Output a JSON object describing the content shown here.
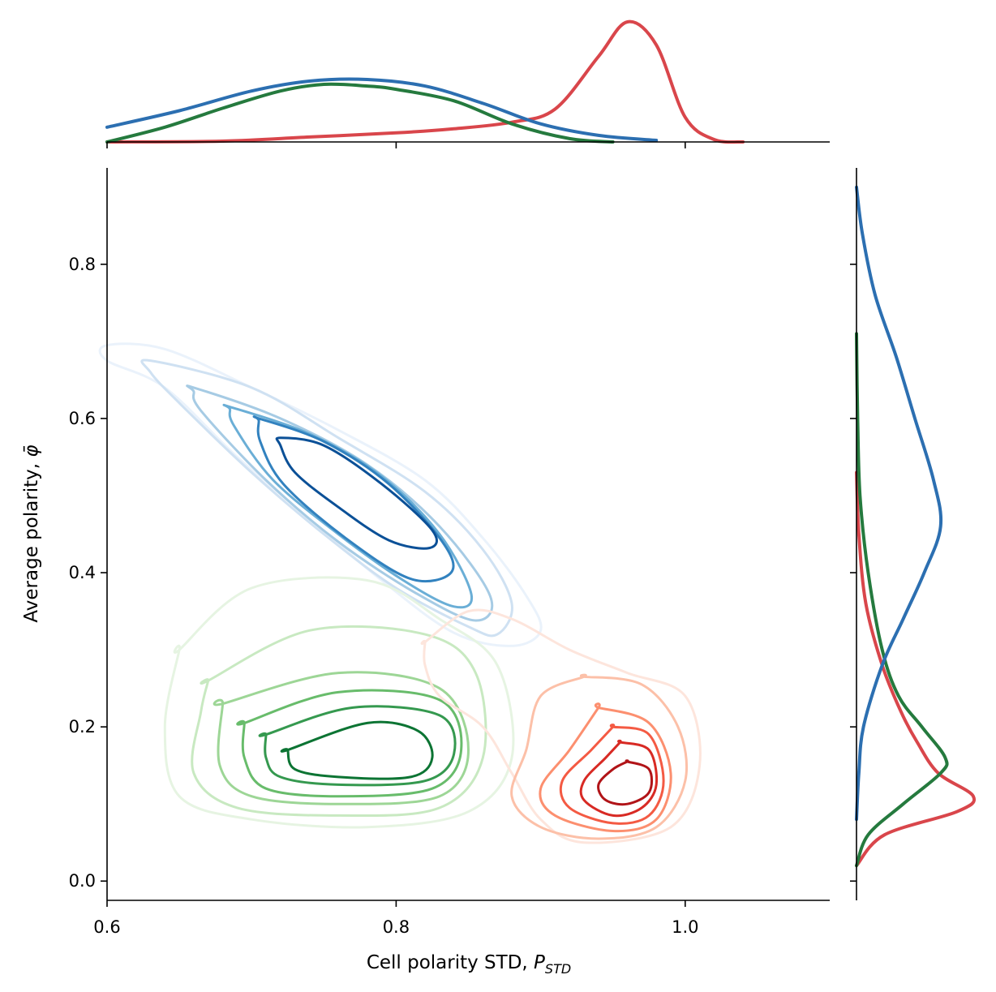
{
  "chart_data": {
    "type": "joint-kde",
    "xlabel": {
      "prefix": "Cell polarity STD, ",
      "symbol": "P",
      "subscript": "STD"
    },
    "ylabel": {
      "prefix": "Average polarity, ",
      "symbol": "φ̄"
    },
    "xlim": [
      0.6,
      1.1
    ],
    "ylim": [
      -0.025,
      0.925
    ],
    "xticks": [
      0.6,
      0.8,
      1.0
    ],
    "xtick_labels": [
      "0.6",
      "0.8",
      "1.0"
    ],
    "yticks": [
      0.0,
      0.2,
      0.4,
      0.6,
      0.8
    ],
    "ytick_labels": [
      "0.0",
      "0.2",
      "0.4",
      "0.6",
      "0.8"
    ],
    "grid": false,
    "series": [
      {
        "color": "#2c6fb1",
        "contour_palette": [
          "#eaf2fb",
          "#cfe1f2",
          "#a6cbe4",
          "#6aaed6",
          "#3282bf",
          "#0b5097"
        ],
        "kde_x": [
          [
            0.6,
            0.018
          ],
          [
            0.65,
            0.038
          ],
          [
            0.7,
            0.062
          ],
          [
            0.74,
            0.074
          ],
          [
            0.78,
            0.076
          ],
          [
            0.82,
            0.068
          ],
          [
            0.86,
            0.047
          ],
          [
            0.9,
            0.022
          ],
          [
            0.94,
            0.008
          ],
          [
            0.98,
            0.002
          ]
        ],
        "kde_y": [
          [
            0.08,
            0.0
          ],
          [
            0.14,
            0.02
          ],
          [
            0.2,
            0.06
          ],
          [
            0.28,
            0.22
          ],
          [
            0.34,
            0.4
          ],
          [
            0.4,
            0.58
          ],
          [
            0.46,
            0.72
          ],
          [
            0.52,
            0.66
          ],
          [
            0.6,
            0.5
          ],
          [
            0.68,
            0.34
          ],
          [
            0.76,
            0.16
          ],
          [
            0.84,
            0.05
          ],
          [
            0.9,
            0.0
          ]
        ],
        "contours": [
          [
            [
              0.6,
              0.695
            ],
            [
              0.64,
              0.69
            ],
            [
              0.7,
              0.64
            ],
            [
              0.76,
              0.585
            ],
            [
              0.82,
              0.52
            ],
            [
              0.86,
              0.445
            ],
            [
              0.89,
              0.37
            ],
            [
              0.9,
              0.325
            ],
            [
              0.88,
              0.305
            ],
            [
              0.84,
              0.322
            ],
            [
              0.79,
              0.39
            ],
            [
              0.74,
              0.47
            ],
            [
              0.69,
              0.55
            ],
            [
              0.64,
              0.64
            ],
            [
              0.6,
              0.675
            ]
          ],
          [
            [
              0.63,
              0.675
            ],
            [
              0.7,
              0.64
            ],
            [
              0.76,
              0.575
            ],
            [
              0.82,
              0.505
            ],
            [
              0.86,
              0.43
            ],
            [
              0.88,
              0.36
            ],
            [
              0.87,
              0.32
            ],
            [
              0.85,
              0.33
            ],
            [
              0.8,
              0.38
            ],
            [
              0.75,
              0.45
            ],
            [
              0.7,
              0.53
            ],
            [
              0.65,
              0.62
            ],
            [
              0.63,
              0.66
            ]
          ],
          [
            [
              0.66,
              0.64
            ],
            [
              0.72,
              0.6
            ],
            [
              0.78,
              0.54
            ],
            [
              0.83,
              0.46
            ],
            [
              0.865,
              0.37
            ],
            [
              0.855,
              0.338
            ],
            [
              0.815,
              0.372
            ],
            [
              0.76,
              0.44
            ],
            [
              0.71,
              0.52
            ],
            [
              0.665,
              0.61
            ],
            [
              0.66,
              0.635
            ]
          ],
          [
            [
              0.685,
              0.615
            ],
            [
              0.74,
              0.58
            ],
            [
              0.79,
              0.525
            ],
            [
              0.83,
              0.45
            ],
            [
              0.852,
              0.372
            ],
            [
              0.84,
              0.356
            ],
            [
              0.805,
              0.39
            ],
            [
              0.76,
              0.45
            ],
            [
              0.715,
              0.52
            ],
            [
              0.688,
              0.59
            ],
            [
              0.685,
              0.612
            ]
          ],
          [
            [
              0.705,
              0.6
            ],
            [
              0.75,
              0.57
            ],
            [
              0.795,
              0.515
            ],
            [
              0.832,
              0.44
            ],
            [
              0.838,
              0.4
            ],
            [
              0.81,
              0.392
            ],
            [
              0.765,
              0.445
            ],
            [
              0.722,
              0.515
            ],
            [
              0.706,
              0.57
            ],
            [
              0.705,
              0.597
            ]
          ],
          [
            [
              0.72,
              0.575
            ],
            [
              0.75,
              0.565
            ],
            [
              0.79,
              0.515
            ],
            [
              0.825,
              0.455
            ],
            [
              0.823,
              0.432
            ],
            [
              0.795,
              0.442
            ],
            [
              0.76,
              0.485
            ],
            [
              0.73,
              0.53
            ],
            [
              0.72,
              0.565
            ]
          ]
        ]
      },
      {
        "color": "#257a3e",
        "contour_palette": [
          "#e6f4e2",
          "#c8e9c1",
          "#9dd696",
          "#68bc6b",
          "#35994f",
          "#0c7433"
        ],
        "kde_x": [
          [
            0.6,
            0.0
          ],
          [
            0.64,
            0.018
          ],
          [
            0.68,
            0.041
          ],
          [
            0.72,
            0.062
          ],
          [
            0.75,
            0.07
          ],
          [
            0.78,
            0.068
          ],
          [
            0.8,
            0.064
          ],
          [
            0.84,
            0.05
          ],
          [
            0.88,
            0.022
          ],
          [
            0.92,
            0.004
          ],
          [
            0.95,
            0.0
          ]
        ],
        "kde_y": [
          [
            0.02,
            0.0
          ],
          [
            0.06,
            0.1
          ],
          [
            0.1,
            0.4
          ],
          [
            0.14,
            0.72
          ],
          [
            0.16,
            0.76
          ],
          [
            0.2,
            0.56
          ],
          [
            0.24,
            0.36
          ],
          [
            0.3,
            0.22
          ],
          [
            0.4,
            0.1
          ],
          [
            0.5,
            0.03
          ],
          [
            0.6,
            0.01
          ],
          [
            0.71,
            0.0
          ]
        ],
        "contours": [
          [
            [
              0.65,
              0.3
            ],
            [
              0.7,
              0.38
            ],
            [
              0.78,
              0.39
            ],
            [
              0.83,
              0.34
            ],
            [
              0.87,
              0.28
            ],
            [
              0.88,
              0.16
            ],
            [
              0.85,
              0.09
            ],
            [
              0.78,
              0.07
            ],
            [
              0.7,
              0.08
            ],
            [
              0.65,
              0.11
            ],
            [
              0.64,
              0.2
            ],
            [
              0.65,
              0.3
            ]
          ],
          [
            [
              0.67,
              0.26
            ],
            [
              0.74,
              0.325
            ],
            [
              0.82,
              0.32
            ],
            [
              0.855,
              0.27
            ],
            [
              0.86,
              0.16
            ],
            [
              0.83,
              0.095
            ],
            [
              0.76,
              0.085
            ],
            [
              0.69,
              0.095
            ],
            [
              0.66,
              0.14
            ],
            [
              0.665,
              0.22
            ],
            [
              0.67,
              0.26
            ]
          ],
          [
            [
              0.68,
              0.23
            ],
            [
              0.76,
              0.27
            ],
            [
              0.83,
              0.25
            ],
            [
              0.85,
              0.17
            ],
            [
              0.83,
              0.11
            ],
            [
              0.76,
              0.1
            ],
            [
              0.7,
              0.11
            ],
            [
              0.678,
              0.15
            ],
            [
              0.68,
              0.23
            ]
          ],
          [
            [
              0.695,
              0.205
            ],
            [
              0.76,
              0.245
            ],
            [
              0.83,
              0.235
            ],
            [
              0.845,
              0.17
            ],
            [
              0.825,
              0.12
            ],
            [
              0.76,
              0.11
            ],
            [
              0.71,
              0.12
            ],
            [
              0.695,
              0.16
            ],
            [
              0.695,
              0.205
            ]
          ],
          [
            [
              0.71,
              0.19
            ],
            [
              0.77,
              0.225
            ],
            [
              0.83,
              0.215
            ],
            [
              0.84,
              0.165
            ],
            [
              0.82,
              0.13
            ],
            [
              0.76,
              0.125
            ],
            [
              0.72,
              0.135
            ],
            [
              0.71,
              0.16
            ],
            [
              0.71,
              0.19
            ]
          ],
          [
            [
              0.725,
              0.17
            ],
            [
              0.78,
              0.205
            ],
            [
              0.815,
              0.195
            ],
            [
              0.825,
              0.16
            ],
            [
              0.81,
              0.135
            ],
            [
              0.76,
              0.135
            ],
            [
              0.73,
              0.145
            ],
            [
              0.725,
              0.17
            ]
          ]
        ]
      },
      {
        "color": "#d9464b",
        "contour_palette": [
          "#fde5dc",
          "#fcc0a8",
          "#fc8f6f",
          "#f45a43",
          "#d82a24",
          "#b11418"
        ],
        "kde_x": [
          [
            0.6,
            0.0
          ],
          [
            0.68,
            0.001
          ],
          [
            0.74,
            0.006
          ],
          [
            0.8,
            0.011
          ],
          [
            0.84,
            0.016
          ],
          [
            0.88,
            0.024
          ],
          [
            0.91,
            0.04
          ],
          [
            0.94,
            0.104
          ],
          [
            0.96,
            0.146
          ],
          [
            0.98,
            0.118
          ],
          [
            1.0,
            0.03
          ],
          [
            1.02,
            0.003
          ],
          [
            1.04,
            0.0
          ]
        ],
        "kde_y": [
          [
            0.02,
            0.0
          ],
          [
            0.06,
            0.24
          ],
          [
            0.09,
            0.86
          ],
          [
            0.11,
            1.0
          ],
          [
            0.14,
            0.7
          ],
          [
            0.18,
            0.52
          ],
          [
            0.22,
            0.38
          ],
          [
            0.28,
            0.22
          ],
          [
            0.36,
            0.08
          ],
          [
            0.45,
            0.02
          ],
          [
            0.53,
            0.0
          ]
        ],
        "contours": [
          [
            [
              0.82,
              0.31
            ],
            [
              0.85,
              0.35
            ],
            [
              0.88,
              0.34
            ],
            [
              0.92,
              0.3
            ],
            [
              0.96,
              0.27
            ],
            [
              1.0,
              0.24
            ],
            [
              1.01,
              0.15
            ],
            [
              0.99,
              0.07
            ],
            [
              0.93,
              0.05
            ],
            [
              0.9,
              0.08
            ],
            [
              0.88,
              0.14
            ],
            [
              0.86,
              0.2
            ],
            [
              0.83,
              0.24
            ],
            [
              0.82,
              0.28
            ],
            [
              0.82,
              0.31
            ]
          ],
          [
            [
              0.93,
              0.265
            ],
            [
              0.97,
              0.255
            ],
            [
              0.995,
              0.2
            ],
            [
              1.0,
              0.13
            ],
            [
              0.98,
              0.07
            ],
            [
              0.94,
              0.055
            ],
            [
              0.9,
              0.07
            ],
            [
              0.88,
              0.11
            ],
            [
              0.89,
              0.17
            ],
            [
              0.9,
              0.24
            ],
            [
              0.93,
              0.265
            ]
          ],
          [
            [
              0.94,
              0.225
            ],
            [
              0.975,
              0.205
            ],
            [
              0.99,
              0.14
            ],
            [
              0.98,
              0.08
            ],
            [
              0.95,
              0.065
            ],
            [
              0.91,
              0.085
            ],
            [
              0.9,
              0.12
            ],
            [
              0.92,
              0.17
            ],
            [
              0.94,
              0.225
            ]
          ],
          [
            [
              0.95,
              0.2
            ],
            [
              0.975,
              0.19
            ],
            [
              0.985,
              0.13
            ],
            [
              0.975,
              0.085
            ],
            [
              0.95,
              0.075
            ],
            [
              0.92,
              0.095
            ],
            [
              0.915,
              0.13
            ],
            [
              0.935,
              0.17
            ],
            [
              0.95,
              0.2
            ]
          ],
          [
            [
              0.955,
              0.18
            ],
            [
              0.975,
              0.17
            ],
            [
              0.98,
              0.125
            ],
            [
              0.97,
              0.095
            ],
            [
              0.95,
              0.085
            ],
            [
              0.93,
              0.105
            ],
            [
              0.93,
              0.13
            ],
            [
              0.945,
              0.16
            ],
            [
              0.955,
              0.18
            ]
          ],
          [
            [
              0.96,
              0.155
            ],
            [
              0.975,
              0.145
            ],
            [
              0.975,
              0.115
            ],
            [
              0.96,
              0.1
            ],
            [
              0.945,
              0.105
            ],
            [
              0.94,
              0.125
            ],
            [
              0.95,
              0.145
            ],
            [
              0.96,
              0.155
            ]
          ]
        ]
      }
    ]
  }
}
